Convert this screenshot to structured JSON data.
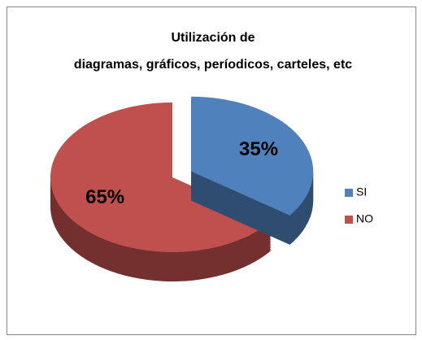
{
  "chart_data": {
    "type": "pie",
    "title": [
      "Utilización de",
      "diagramas, gráficos, períodicos, carteles, etc"
    ],
    "categories": [
      "SI",
      "NO"
    ],
    "values": [
      35,
      65
    ],
    "value_labels": [
      "35%",
      "65%"
    ],
    "colors": [
      "#4f81bd",
      "#c0504d"
    ],
    "legend": "right"
  }
}
